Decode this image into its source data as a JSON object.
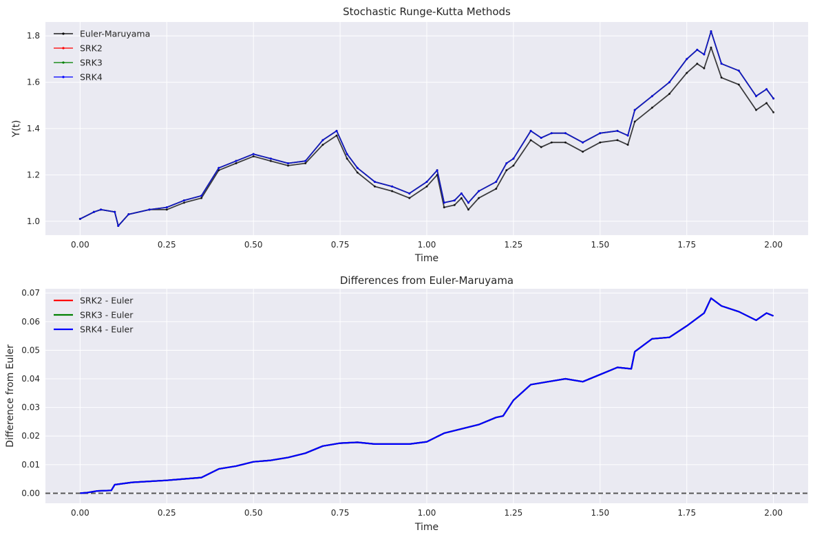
{
  "chart_data": [
    {
      "type": "line",
      "title": "Stochastic Runge-Kutta Methods",
      "xlabel": "Time",
      "ylabel": "Y(t)",
      "xlim": [
        -0.1,
        2.1
      ],
      "ylim": [
        0.94,
        1.86
      ],
      "xticks": [
        "0.00",
        "0.25",
        "0.50",
        "0.75",
        "1.00",
        "1.25",
        "1.50",
        "1.75",
        "2.00"
      ],
      "yticks": [
        "1.0",
        "1.2",
        "1.4",
        "1.6",
        "1.8"
      ],
      "grid": true,
      "legend": "upper left",
      "x": [
        0.0,
        0.04,
        0.06,
        0.1,
        0.11,
        0.14,
        0.2,
        0.25,
        0.3,
        0.35,
        0.4,
        0.45,
        0.5,
        0.55,
        0.6,
        0.65,
        0.7,
        0.74,
        0.77,
        0.8,
        0.85,
        0.9,
        0.95,
        1.0,
        1.03,
        1.05,
        1.08,
        1.1,
        1.12,
        1.15,
        1.2,
        1.23,
        1.25,
        1.3,
        1.33,
        1.36,
        1.4,
        1.45,
        1.5,
        1.55,
        1.58,
        1.6,
        1.65,
        1.7,
        1.75,
        1.78,
        1.8,
        1.82,
        1.85,
        1.9,
        1.95,
        1.98,
        2.0
      ],
      "series": [
        {
          "name": "Euler-Maruyama",
          "color": "#000000",
          "values": [
            1.01,
            1.04,
            1.05,
            1.04,
            0.98,
            1.03,
            1.05,
            1.05,
            1.08,
            1.1,
            1.22,
            1.25,
            1.28,
            1.26,
            1.24,
            1.25,
            1.33,
            1.37,
            1.27,
            1.21,
            1.15,
            1.13,
            1.1,
            1.15,
            1.2,
            1.06,
            1.07,
            1.1,
            1.05,
            1.1,
            1.14,
            1.22,
            1.24,
            1.35,
            1.32,
            1.34,
            1.34,
            1.3,
            1.34,
            1.35,
            1.33,
            1.43,
            1.49,
            1.55,
            1.64,
            1.68,
            1.66,
            1.75,
            1.62,
            1.59,
            1.48,
            1.51,
            1.47
          ]
        },
        {
          "name": "SRK2",
          "color": "#ff0000",
          "values": [
            1.01,
            1.04,
            1.05,
            1.04,
            0.98,
            1.03,
            1.05,
            1.06,
            1.09,
            1.11,
            1.23,
            1.26,
            1.29,
            1.27,
            1.25,
            1.26,
            1.35,
            1.39,
            1.29,
            1.23,
            1.17,
            1.15,
            1.12,
            1.17,
            1.22,
            1.08,
            1.09,
            1.12,
            1.08,
            1.13,
            1.17,
            1.25,
            1.27,
            1.39,
            1.36,
            1.38,
            1.38,
            1.34,
            1.38,
            1.39,
            1.37,
            1.48,
            1.54,
            1.6,
            1.7,
            1.74,
            1.72,
            1.82,
            1.68,
            1.65,
            1.54,
            1.57,
            1.53
          ]
        },
        {
          "name": "SRK3",
          "color": "#008000",
          "values": [
            1.01,
            1.04,
            1.05,
            1.04,
            0.98,
            1.03,
            1.05,
            1.06,
            1.09,
            1.11,
            1.23,
            1.26,
            1.29,
            1.27,
            1.25,
            1.26,
            1.35,
            1.39,
            1.29,
            1.23,
            1.17,
            1.15,
            1.12,
            1.17,
            1.22,
            1.08,
            1.09,
            1.12,
            1.08,
            1.13,
            1.17,
            1.25,
            1.27,
            1.39,
            1.36,
            1.38,
            1.38,
            1.34,
            1.38,
            1.39,
            1.37,
            1.48,
            1.54,
            1.6,
            1.7,
            1.74,
            1.72,
            1.82,
            1.68,
            1.65,
            1.54,
            1.57,
            1.53
          ]
        },
        {
          "name": "SRK4",
          "color": "#0000ff",
          "values": [
            1.01,
            1.04,
            1.05,
            1.04,
            0.98,
            1.03,
            1.05,
            1.06,
            1.09,
            1.11,
            1.23,
            1.26,
            1.29,
            1.27,
            1.25,
            1.26,
            1.35,
            1.39,
            1.29,
            1.23,
            1.17,
            1.15,
            1.12,
            1.17,
            1.22,
            1.08,
            1.09,
            1.12,
            1.08,
            1.13,
            1.17,
            1.25,
            1.27,
            1.39,
            1.36,
            1.38,
            1.38,
            1.34,
            1.38,
            1.39,
            1.37,
            1.48,
            1.54,
            1.6,
            1.7,
            1.74,
            1.72,
            1.82,
            1.68,
            1.65,
            1.54,
            1.57,
            1.53
          ]
        }
      ]
    },
    {
      "type": "line",
      "title": "Differences from Euler-Maruyama",
      "xlabel": "Time",
      "ylabel": "Difference from Euler",
      "xlim": [
        -0.1,
        2.1
      ],
      "ylim": [
        -0.0035,
        0.0715
      ],
      "xticks": [
        "0.00",
        "0.25",
        "0.50",
        "0.75",
        "1.00",
        "1.25",
        "1.50",
        "1.75",
        "2.00"
      ],
      "yticks": [
        "0.00",
        "0.01",
        "0.02",
        "0.03",
        "0.04",
        "0.05",
        "0.06",
        "0.07"
      ],
      "grid": true,
      "legend": "upper left",
      "reference_line": {
        "y": 0,
        "style": "dashed",
        "color": "#555555"
      },
      "x": [
        0.0,
        0.02,
        0.05,
        0.09,
        0.1,
        0.15,
        0.25,
        0.3,
        0.35,
        0.4,
        0.45,
        0.5,
        0.55,
        0.6,
        0.65,
        0.7,
        0.75,
        0.8,
        0.85,
        0.9,
        0.95,
        1.0,
        1.05,
        1.1,
        1.15,
        1.2,
        1.22,
        1.25,
        1.3,
        1.35,
        1.4,
        1.45,
        1.5,
        1.55,
        1.59,
        1.6,
        1.65,
        1.7,
        1.75,
        1.8,
        1.82,
        1.85,
        1.9,
        1.95,
        1.98,
        2.0
      ],
      "series": [
        {
          "name": "SRK2 - Euler",
          "color": "#ff0000",
          "values": [
            0.0,
            0.0002,
            0.0008,
            0.001,
            0.003,
            0.0038,
            0.0045,
            0.005,
            0.0055,
            0.0085,
            0.0095,
            0.011,
            0.0115,
            0.0125,
            0.014,
            0.0165,
            0.0175,
            0.0178,
            0.0172,
            0.0172,
            0.0172,
            0.018,
            0.021,
            0.0225,
            0.024,
            0.0265,
            0.027,
            0.0325,
            0.038,
            0.039,
            0.04,
            0.039,
            0.0415,
            0.044,
            0.0435,
            0.0495,
            0.054,
            0.0545,
            0.0585,
            0.063,
            0.0682,
            0.0655,
            0.0635,
            0.0605,
            0.063,
            0.062
          ]
        },
        {
          "name": "SRK3 - Euler",
          "color": "#008000",
          "values": [
            0.0,
            0.0002,
            0.0008,
            0.001,
            0.003,
            0.0038,
            0.0045,
            0.005,
            0.0055,
            0.0085,
            0.0095,
            0.011,
            0.0115,
            0.0125,
            0.014,
            0.0165,
            0.0175,
            0.0178,
            0.0172,
            0.0172,
            0.0172,
            0.018,
            0.021,
            0.0225,
            0.024,
            0.0265,
            0.027,
            0.0325,
            0.038,
            0.039,
            0.04,
            0.039,
            0.0415,
            0.044,
            0.0435,
            0.0495,
            0.054,
            0.0545,
            0.0585,
            0.063,
            0.0682,
            0.0655,
            0.0635,
            0.0605,
            0.063,
            0.062
          ]
        },
        {
          "name": "SRK4 - Euler",
          "color": "#0000ff",
          "values": [
            0.0,
            0.0002,
            0.0008,
            0.001,
            0.003,
            0.0038,
            0.0045,
            0.005,
            0.0055,
            0.0085,
            0.0095,
            0.011,
            0.0115,
            0.0125,
            0.014,
            0.0165,
            0.0175,
            0.0178,
            0.0172,
            0.0172,
            0.0172,
            0.018,
            0.021,
            0.0225,
            0.024,
            0.0265,
            0.027,
            0.0325,
            0.038,
            0.039,
            0.04,
            0.039,
            0.0415,
            0.044,
            0.0435,
            0.0495,
            0.054,
            0.0545,
            0.0585,
            0.063,
            0.0682,
            0.0655,
            0.0635,
            0.0605,
            0.063,
            0.062
          ]
        }
      ]
    }
  ],
  "colors": {
    "axes_background": "#eaeaf2",
    "grid": "#ffffff",
    "text": "#262626"
  }
}
